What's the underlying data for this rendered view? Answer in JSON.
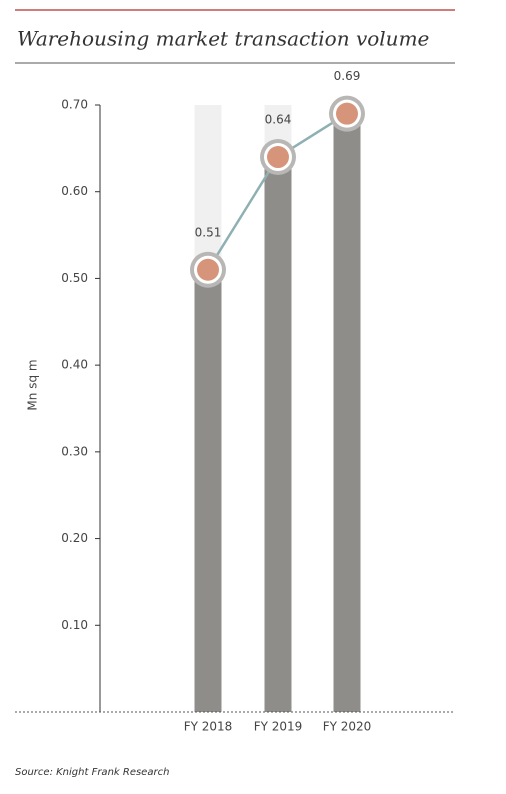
{
  "chart_data": {
    "type": "bar",
    "title": "Warehousing market transaction volume",
    "y_label": "Mn sq m",
    "categories": [
      "FY 2018",
      "FY 2019",
      "FY 2020"
    ],
    "values": [
      0.51,
      0.64,
      0.69
    ],
    "bar_color": "#8f8d8a",
    "line_color": "#8fb0b3",
    "marker_color": "#d6957a",
    "ylim": [
      0,
      0.7
    ],
    "yticks": [
      {
        "value": 0.1,
        "label": "0.10"
      },
      {
        "value": 0.2,
        "label": "0.20"
      },
      {
        "value": 0.3,
        "label": "0.30"
      },
      {
        "value": 0.4,
        "label": "0.40"
      },
      {
        "value": 0.5,
        "label": "0.50"
      },
      {
        "value": 0.6,
        "label": "0.60"
      },
      {
        "value": 0.7,
        "label": "0.70"
      }
    ],
    "source": "Source: Knight Frank Research"
  }
}
